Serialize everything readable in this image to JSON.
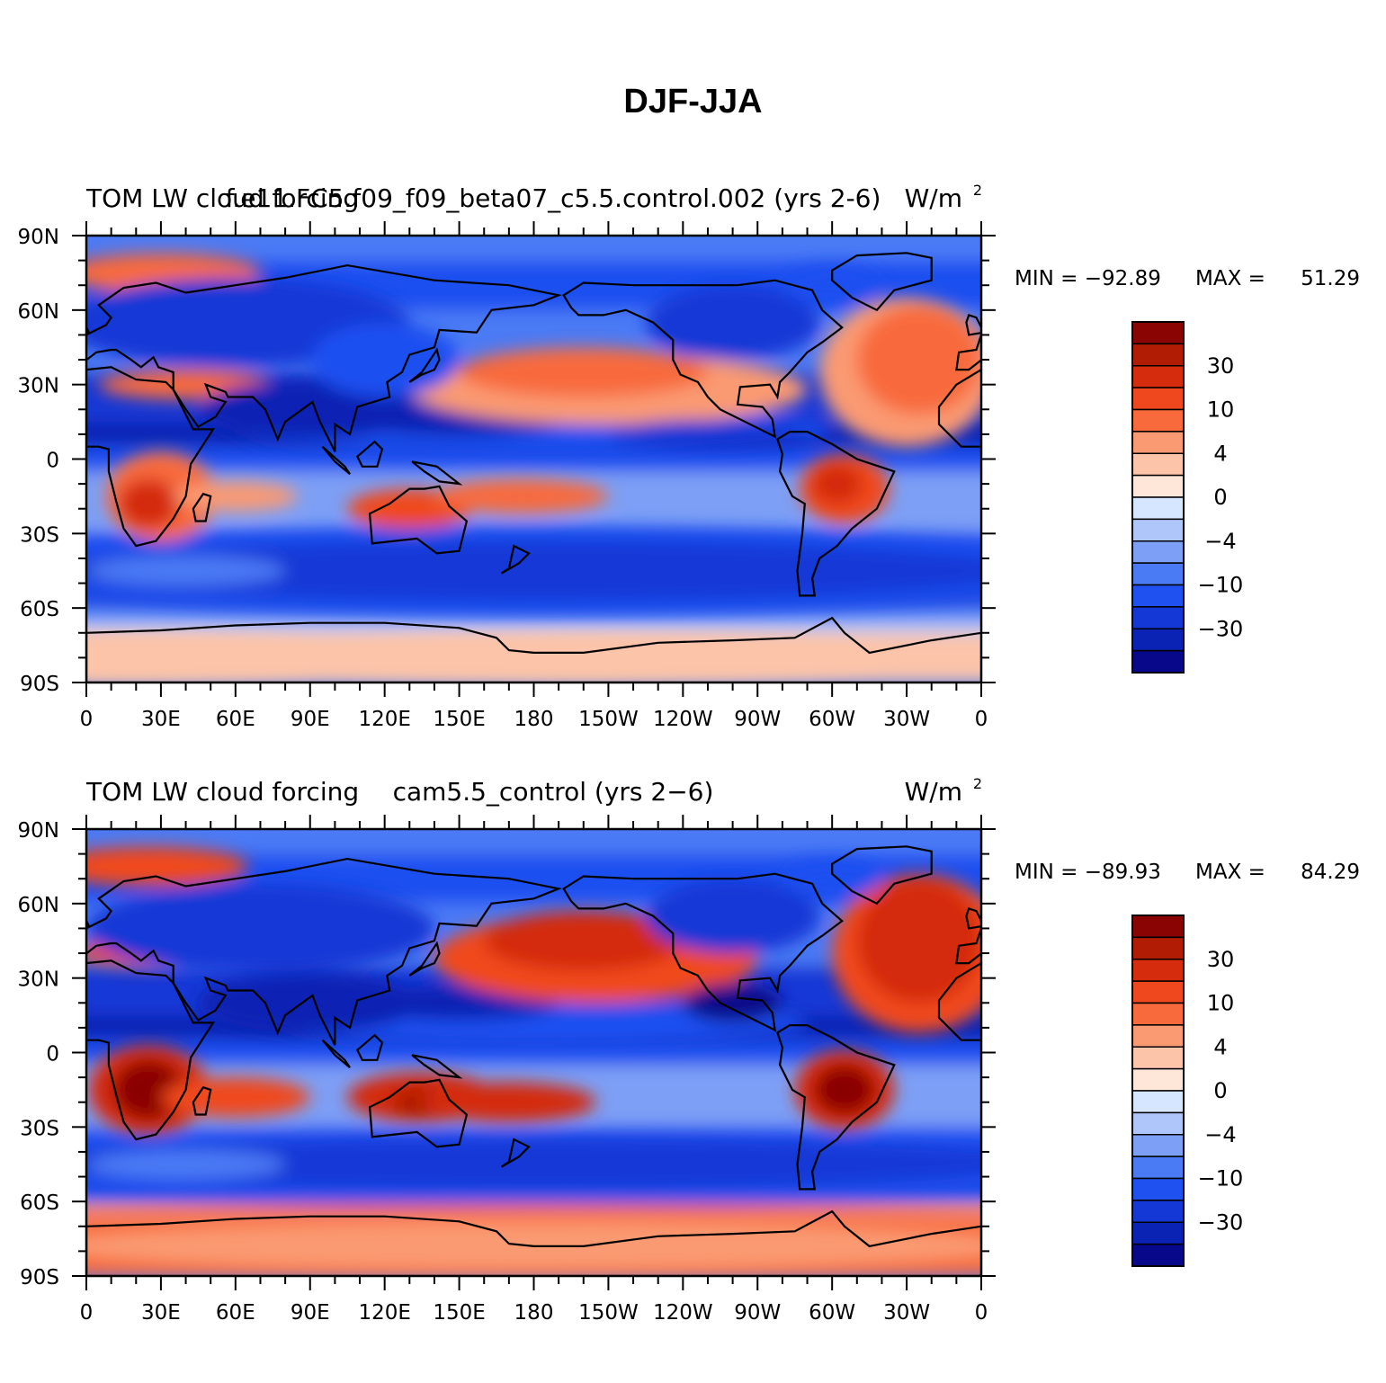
{
  "figure": {
    "title": "DJF-JJA",
    "colors": {
      "levels": [
        "#08088a",
        "#0a23b4",
        "#1438d6",
        "#1f50f0",
        "#4b7af5",
        "#7d9ff5",
        "#aec6fa",
        "#d6e6fe",
        "#fee6d8",
        "#fcc4a8",
        "#fa9a72",
        "#f86a3c",
        "#f0481e",
        "#d42c0c",
        "#b01c04",
        "#8a0404"
      ],
      "coast": "#000000"
    },
    "panels": [
      {
        "left_title": "TOM LW cloud forcing",
        "center_title": "f.e11.FC5.f09_f09_beta07_c5.5.control.002 (yrs 2-6)",
        "units": "W/m",
        "units_sup": "2",
        "min_label": "MIN = −92.89",
        "max_label": "MAX =",
        "max_value": "51.29",
        "lat_labels": [
          "90N",
          "60N",
          "30N",
          "0",
          "30S",
          "60S",
          "90S"
        ],
        "lon_labels": [
          "0",
          "30E",
          "60E",
          "90E",
          "120E",
          "150E",
          "180",
          "150W",
          "120W",
          "90W",
          "60W",
          "30W",
          "0"
        ],
        "colorbar_labels": [
          "30",
          "10",
          "4",
          "0",
          "−4",
          "−10",
          "−30"
        ]
      },
      {
        "left_title": "TOM LW cloud forcing",
        "center_title": "cam5.5_control (yrs 2−6)",
        "units": "W/m",
        "units_sup": "2",
        "min_label": "MIN = −89.93",
        "max_label": "MAX =",
        "max_value": "84.29",
        "lat_labels": [
          "90N",
          "60N",
          "30N",
          "0",
          "30S",
          "60S",
          "90S"
        ],
        "lon_labels": [
          "0",
          "30E",
          "60E",
          "90E",
          "120E",
          "150E",
          "180",
          "150W",
          "120W",
          "90W",
          "60W",
          "30W",
          "0"
        ],
        "colorbar_labels": [
          "30",
          "10",
          "4",
          "0",
          "−4",
          "−10",
          "−30"
        ]
      }
    ]
  }
}
